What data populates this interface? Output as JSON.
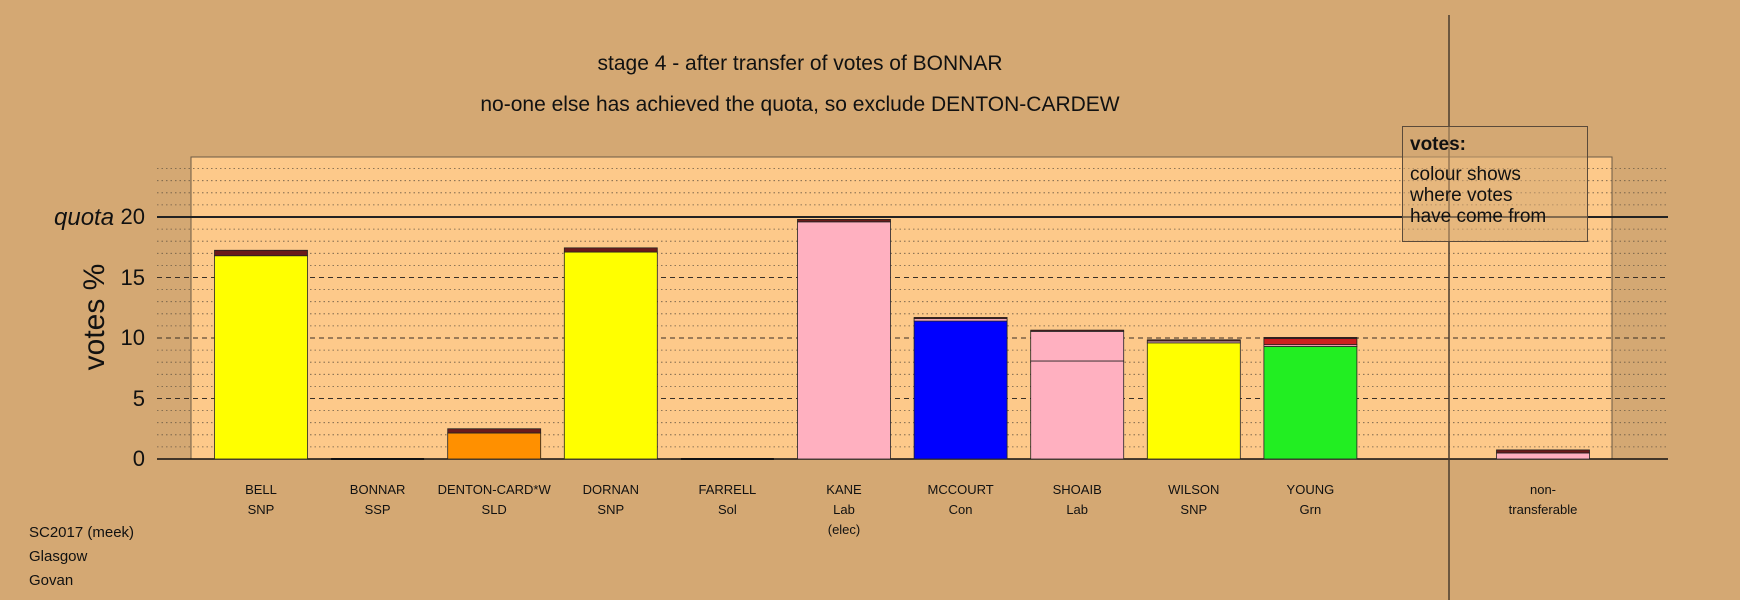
{
  "title": "stage 4 - after transfer of votes of BONNAR",
  "subtitle": "no-one else has achieved the quota, so exclude DENTON-CARDEW",
  "ylabel": "votes %",
  "quota_label": "quota",
  "legend": {
    "title": "votes:",
    "lines": [
      "colour shows",
      "where votes",
      "have come from"
    ]
  },
  "footer": [
    "SC2017 (meek)",
    "Glasgow",
    "Govan"
  ],
  "colors": {
    "background": "#d4a873",
    "panel": "#fdc98a",
    "SNP": "#ffff00",
    "SSP": "#cc0000",
    "SLD": "#ff9000",
    "Lab": "#ffb0c0",
    "Con": "#0000ff",
    "Grn": "#22ee22",
    "transfer_dark": "#6b1a1a",
    "transfer_red": "#cc2020"
  },
  "chart_data": {
    "type": "bar",
    "stacked": true,
    "ylim": [
      0,
      20
    ],
    "yticks": [
      0,
      5,
      10,
      15,
      20
    ],
    "quota": 20,
    "grid": "dashed at 5-unit intervals, dotted minor lines",
    "legend_position": "top-right",
    "categories": [
      {
        "name": "BELL",
        "party": "SNP",
        "extra": "",
        "segments": [
          {
            "from": "SNP",
            "value": 16.8,
            "color": "#ffff00"
          },
          {
            "from": "transfer",
            "value": 0.45,
            "color": "#6b1a1a"
          }
        ]
      },
      {
        "name": "BONNAR",
        "party": "SSP",
        "extra": "",
        "segments": []
      },
      {
        "name": "DENTON-CARD*W",
        "party": "SLD",
        "extra": "",
        "segments": [
          {
            "from": "SLD",
            "value": 2.15,
            "color": "#ff9000"
          },
          {
            "from": "transfer",
            "value": 0.35,
            "color": "#6b1a1a"
          }
        ]
      },
      {
        "name": "DORNAN",
        "party": "SNP",
        "extra": "",
        "segments": [
          {
            "from": "SNP",
            "value": 17.1,
            "color": "#ffff00"
          },
          {
            "from": "transfer",
            "value": 0.35,
            "color": "#6b1a1a"
          }
        ]
      },
      {
        "name": "FARRELL",
        "party": "Sol",
        "extra": "",
        "segments": []
      },
      {
        "name": "KANE",
        "party": "Lab",
        "extra": "(elec)",
        "segments": [
          {
            "from": "Lab",
            "value": 19.6,
            "color": "#ffb0c0"
          },
          {
            "from": "transfer",
            "value": 0.2,
            "color": "#6b1a1a"
          }
        ]
      },
      {
        "name": "MCCOURT",
        "party": "Con",
        "extra": "",
        "segments": [
          {
            "from": "Con",
            "value": 11.4,
            "color": "#0000ff"
          },
          {
            "from": "Lab",
            "value": 0.2,
            "color": "#ffb0c0"
          },
          {
            "from": "transfer",
            "value": 0.1,
            "color": "#6b1a1a"
          }
        ]
      },
      {
        "name": "SHOAIB",
        "party": "Lab",
        "extra": "",
        "segments": [
          {
            "from": "Lab",
            "value": 8.1,
            "color": "#ffb0c0"
          },
          {
            "from": "Lab (KANE surplus)",
            "value": 2.45,
            "color": "#ffb0c0"
          },
          {
            "from": "transfer",
            "value": 0.1,
            "color": "#6b1a1a"
          }
        ]
      },
      {
        "name": "WILSON",
        "party": "SNP",
        "extra": "",
        "segments": [
          {
            "from": "SNP",
            "value": 9.6,
            "color": "#ffff00"
          },
          {
            "from": "Lab",
            "value": 0.15,
            "color": "#ffb0c0"
          },
          {
            "from": "transfer",
            "value": 0.1,
            "color": "#6b1a1a"
          }
        ]
      },
      {
        "name": "YOUNG",
        "party": "Grn",
        "extra": "",
        "segments": [
          {
            "from": "Grn",
            "value": 9.3,
            "color": "#22ee22"
          },
          {
            "from": "Lab",
            "value": 0.15,
            "color": "#ffb0c0"
          },
          {
            "from": "SSP",
            "value": 0.5,
            "color": "#cc2020"
          },
          {
            "from": "transfer",
            "value": 0.1,
            "color": "#6b1a1a"
          }
        ]
      }
    ],
    "nontransferable": {
      "name": "non-",
      "party": "transferable",
      "segments": [
        {
          "from": "Lab",
          "value": 0.5,
          "color": "#ffb0c0"
        },
        {
          "from": "transfer",
          "value": 0.25,
          "color": "#6b1a1a"
        }
      ]
    }
  }
}
